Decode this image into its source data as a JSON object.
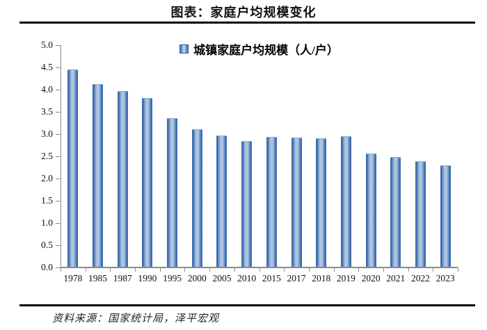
{
  "header": {
    "title": "图表：家庭户均规模变化"
  },
  "footer": {
    "source": "资料来源：国家统计局，泽平宏观"
  },
  "chart_data": {
    "type": "bar",
    "title": "图表：家庭户均规模变化",
    "legend": "城镇家庭户均规模（人/户）",
    "legend_position": "top-center",
    "xlabel": "",
    "ylabel": "",
    "categories": [
      "1978",
      "1985",
      "1987",
      "1990",
      "1995",
      "2000",
      "2005",
      "2010",
      "2015",
      "2017",
      "2018",
      "2019",
      "2020",
      "2021",
      "2022",
      "2023"
    ],
    "values": [
      4.46,
      4.12,
      3.97,
      3.82,
      3.36,
      3.11,
      2.97,
      2.85,
      2.93,
      2.92,
      2.91,
      2.95,
      2.57,
      2.48,
      2.39,
      2.29
    ],
    "ylim": [
      0.0,
      5.0
    ],
    "ytick_step": 0.5,
    "ytick_labels": [
      "0.0",
      "0.5",
      "1.0",
      "1.5",
      "2.0",
      "2.5",
      "3.0",
      "3.5",
      "4.0",
      "4.5",
      "5.0"
    ],
    "grid": false,
    "bar_color": "#4f81bd",
    "bar_border": "#2e5f9c",
    "axis_color": "#8a8a8a"
  }
}
